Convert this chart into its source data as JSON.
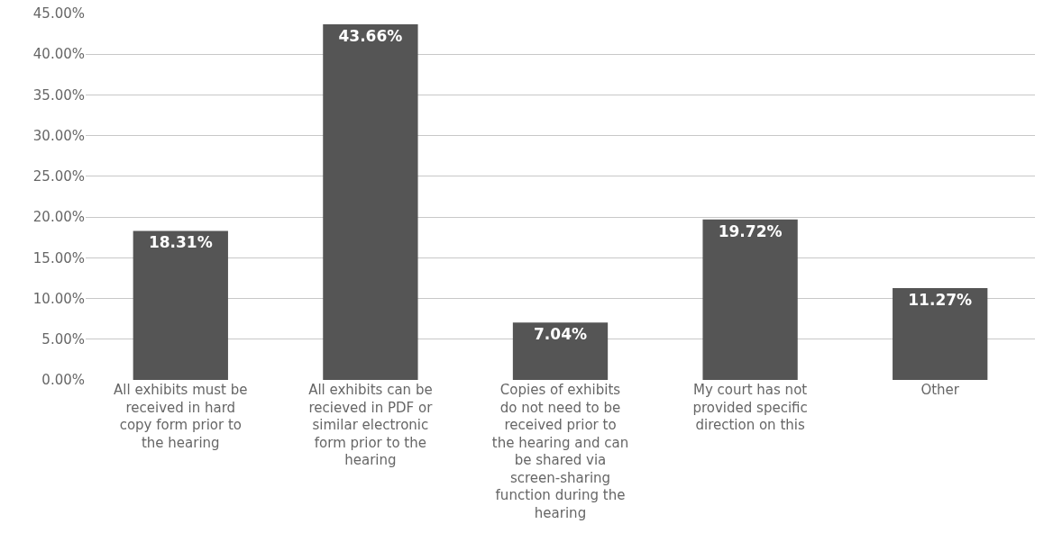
{
  "chart_data": {
    "type": "bar",
    "categories": [
      "All exhibits must be received in hard copy form prior to the hearing",
      "All exhibits can be recieved in PDF or similar electronic form prior to the hearing",
      "Copies of exhibits do not need to be received prior to the hearing and can be shared via screen-sharing function during the hearing",
      "My court has not provided specific direction on this",
      "Other"
    ],
    "values": [
      18.31,
      43.66,
      7.04,
      19.72,
      11.27
    ],
    "value_labels": [
      "18.31%",
      "43.66%",
      "7.04%",
      "19.72%",
      "11.27%"
    ],
    "color": "#555555",
    "ylim": [
      0,
      45
    ],
    "yticks": [
      {
        "value": 0,
        "label": "0.00%"
      },
      {
        "value": 5,
        "label": "5.00%"
      },
      {
        "value": 10,
        "label": "10.00%"
      },
      {
        "value": 15,
        "label": "15.00%"
      },
      {
        "value": 20,
        "label": "20.00%"
      },
      {
        "value": 25,
        "label": "25.00%"
      },
      {
        "value": 30,
        "label": "30.00%"
      },
      {
        "value": 35,
        "label": "35.00%"
      },
      {
        "value": 40,
        "label": "40.00%"
      },
      {
        "value": 45,
        "label": "45.00%"
      }
    ],
    "grid": true
  }
}
